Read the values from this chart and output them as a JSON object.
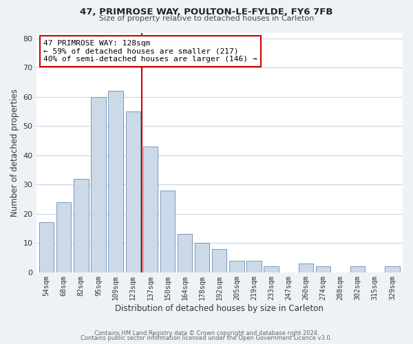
{
  "title_line1": "47, PRIMROSE WAY, POULTON-LE-FYLDE, FY6 7FB",
  "title_line2": "Size of property relative to detached houses in Carleton",
  "xlabel": "Distribution of detached houses by size in Carleton",
  "ylabel": "Number of detached properties",
  "bar_labels": [
    "54sqm",
    "68sqm",
    "82sqm",
    "95sqm",
    "109sqm",
    "123sqm",
    "137sqm",
    "150sqm",
    "164sqm",
    "178sqm",
    "192sqm",
    "205sqm",
    "219sqm",
    "233sqm",
    "247sqm",
    "260sqm",
    "274sqm",
    "288sqm",
    "302sqm",
    "315sqm",
    "329sqm"
  ],
  "bar_values": [
    17,
    24,
    32,
    60,
    62,
    55,
    43,
    28,
    13,
    10,
    8,
    4,
    4,
    2,
    0,
    3,
    2,
    0,
    2,
    0,
    2
  ],
  "bar_color": "#ccd9e8",
  "bar_edge_color": "#7799bb",
  "vline_x_index": 5,
  "vline_color": "#cc0000",
  "annotation_text": "47 PRIMROSE WAY: 128sqm\n← 59% of detached houses are smaller (217)\n40% of semi-detached houses are larger (146) →",
  "annotation_box_edgecolor": "#cc0000",
  "annotation_box_facecolor": "#ffffff",
  "ylim": [
    0,
    82
  ],
  "yticks": [
    0,
    10,
    20,
    30,
    40,
    50,
    60,
    70,
    80
  ],
  "footer_line1": "Contains HM Land Registry data © Crown copyright and database right 2024.",
  "footer_line2": "Contains public sector information licensed under the Open Government Licence v3.0.",
  "bg_color": "#eef2f7",
  "plot_bg_color": "#ffffff",
  "grid_color": "#c8d4e0"
}
